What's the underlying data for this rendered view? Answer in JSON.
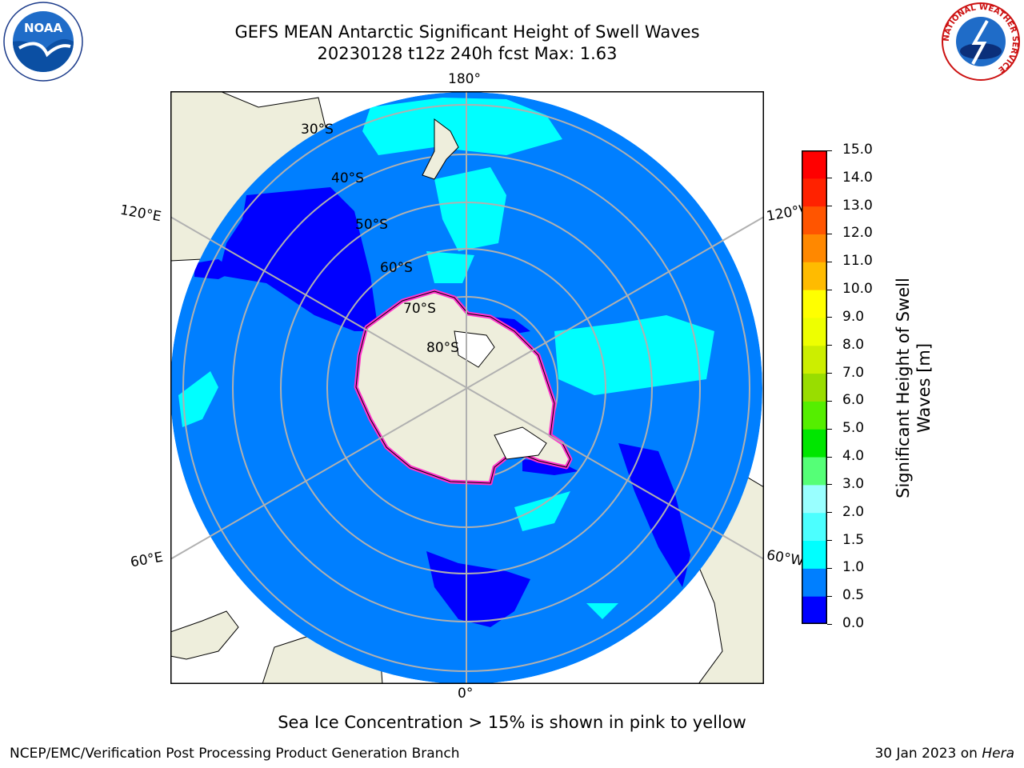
{
  "header": {
    "title_line1": "GEFS MEAN Antarctic Significant Height of Swell Waves",
    "title_line2": "20230128 t12z 240h fcst   Max: 1.63"
  },
  "logos": {
    "noaa_text": "NOAA",
    "nws_ring_text": "NATIONAL WEATHER SERVICE"
  },
  "map": {
    "lon_labels": {
      "top": "180°",
      "bottom": "0°",
      "upper_left": "120°E",
      "upper_right": "120°W",
      "lower_left": "60°E",
      "lower_right": "60°W"
    },
    "lat_labels": [
      "30°S",
      "40°S",
      "50°S",
      "60°S",
      "70°S",
      "80°S"
    ],
    "colors": {
      "ocean_low": "#007fff",
      "swell_very_low": "#0000ff",
      "swell_mid": "#00ffff",
      "land": "#eeeedc",
      "ice_edge": "#ff33cc",
      "grid": "#b0b0b0"
    }
  },
  "colorbar": {
    "label_line1": "Significant Height of Swell",
    "label_line2": "Waves [m]",
    "ticks": [
      "15.0",
      "14.0",
      "13.0",
      "12.0",
      "11.0",
      "10.0",
      "9.0",
      "8.0",
      "7.0",
      "6.0",
      "5.0",
      "4.0",
      "3.0",
      "2.0",
      "1.5",
      "1.0",
      "0.5",
      "0.0"
    ],
    "colors": [
      "#0000ff",
      "#007fff",
      "#00ffff",
      "#4cffff",
      "#99ffff",
      "#55ff77",
      "#00e600",
      "#55ee00",
      "#99dd00",
      "#ccee00",
      "#eeff00",
      "#ffff00",
      "#ffbb00",
      "#ff8800",
      "#ff5500",
      "#ff2200",
      "#ff0000"
    ]
  },
  "footer": {
    "note": "Sea Ice Concentration > 15% is shown in pink to yellow",
    "credit": "NCEP/EMC/Verification Post Processing Product Generation Branch",
    "date": "30 Jan 2023 on ",
    "host": "Hera"
  }
}
